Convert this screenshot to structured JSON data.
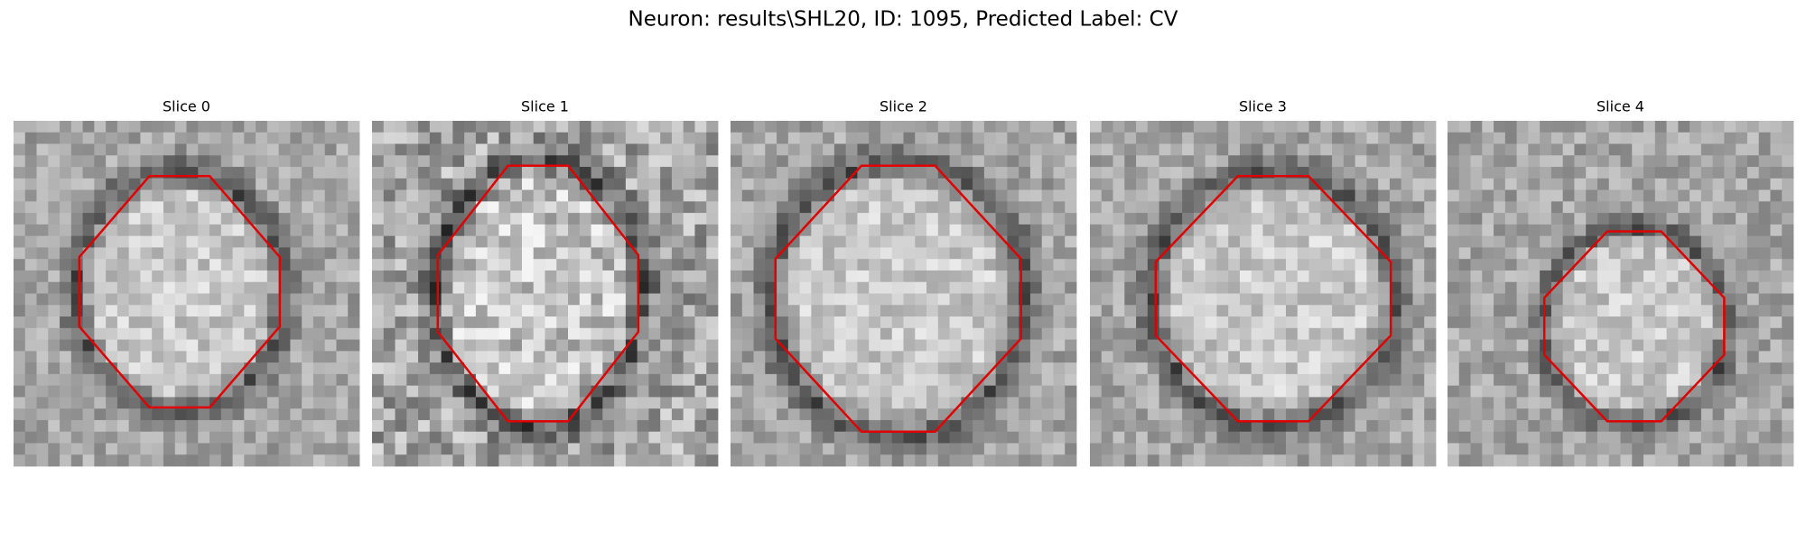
{
  "figure": {
    "title": "Neuron: results\\SHL20, ID: 1095, Predicted Label: CV",
    "panels": [
      {
        "title": "Slice 0"
      },
      {
        "title": "Slice 1"
      },
      {
        "title": "Slice 2"
      },
      {
        "title": "Slice 3"
      },
      {
        "title": "Slice 4"
      }
    ]
  }
}
